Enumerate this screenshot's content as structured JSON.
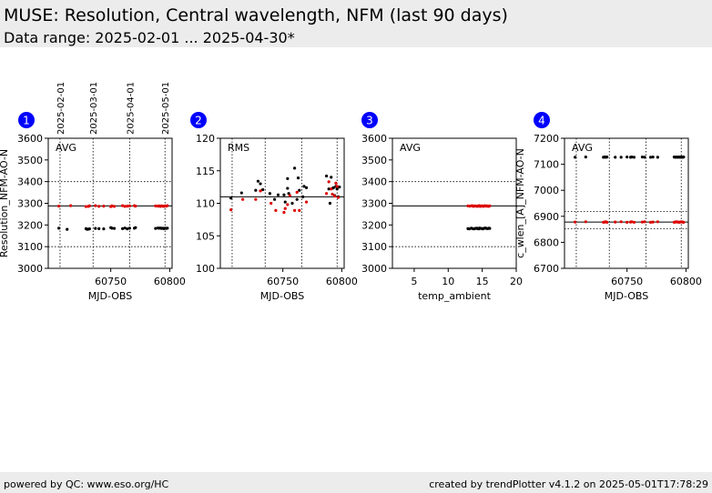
{
  "page": {
    "title": "MUSE: Resolution, Central wavelength, NFM (last 90 days)",
    "subtitle": "Data range: 2025-02-01 ... 2025-04-30*"
  },
  "footer": {
    "left": "powered by QC: www.eso.org/HC",
    "right": "created by trendPlotter v4.1.2 on 2025-05-01T17:78:29"
  },
  "colors": {
    "header_bg": "#ececec",
    "badge": "#0000ff",
    "points_black": "#000000",
    "points_red": "#dd0000"
  },
  "date_ticks": [
    {
      "label": "2025-02-01",
      "mjd": 60707
    },
    {
      "label": "2025-03-01",
      "mjd": 60735
    },
    {
      "label": "2025-04-01",
      "mjd": 60766
    },
    {
      "label": "2025-05-01",
      "mjd": 60796
    }
  ],
  "chart_data": [
    {
      "badge": "1",
      "type": "scatter",
      "corner_label": "AVG",
      "xlabel": "MJD-OBS",
      "ylabel": "Resolution_NFM-AO-N",
      "xlim": [
        60697,
        60802
      ],
      "ylim": [
        3000,
        3600
      ],
      "xticks": [
        60750,
        60800
      ],
      "yticks": [
        3000,
        3100,
        3200,
        3300,
        3400,
        3500,
        3600
      ],
      "hlines": [
        {
          "y": 3100,
          "style": "dotted"
        },
        {
          "y": 3288,
          "style": "solid"
        },
        {
          "y": 3400,
          "style": "dotted"
        }
      ],
      "vlines_mjd": [
        60707,
        60735,
        60766,
        60796
      ],
      "series": [
        {
          "color": "black",
          "points": [
            [
              60706,
              3185
            ],
            [
              60713,
              3180
            ],
            [
              60729,
              3183
            ],
            [
              60730,
              3180
            ],
            [
              60731,
              3181
            ],
            [
              60732,
              3182
            ],
            [
              60737,
              3184
            ],
            [
              60740,
              3183
            ],
            [
              60744,
              3182
            ],
            [
              60750,
              3188
            ],
            [
              60751,
              3185
            ],
            [
              60753,
              3184
            ],
            [
              60760,
              3183
            ],
            [
              60762,
              3186
            ],
            [
              60764,
              3182
            ],
            [
              60766,
              3185
            ],
            [
              60770,
              3185
            ],
            [
              60771,
              3188
            ],
            [
              60788,
              3184
            ],
            [
              60790,
              3186
            ],
            [
              60791,
              3185
            ],
            [
              60792,
              3186
            ],
            [
              60793,
              3184
            ],
            [
              60794,
              3185
            ],
            [
              60795,
              3183
            ],
            [
              60796,
              3185
            ],
            [
              60797,
              3184
            ],
            [
              60798,
              3185
            ]
          ]
        },
        {
          "color": "red",
          "points": [
            [
              60706,
              3287
            ],
            [
              60716,
              3289
            ],
            [
              60729,
              3285
            ],
            [
              60731,
              3286
            ],
            [
              60732,
              3288
            ],
            [
              60737,
              3289
            ],
            [
              60740,
              3286
            ],
            [
              60744,
              3287
            ],
            [
              60750,
              3285
            ],
            [
              60751,
              3288
            ],
            [
              60753,
              3286
            ],
            [
              60760,
              3289
            ],
            [
              60762,
              3286
            ],
            [
              60764,
              3287
            ],
            [
              60766,
              3288
            ],
            [
              60770,
              3289
            ],
            [
              60771,
              3287
            ],
            [
              60788,
              3288
            ],
            [
              60790,
              3287
            ],
            [
              60791,
              3288
            ],
            [
              60792,
              3286
            ],
            [
              60793,
              3288
            ],
            [
              60794,
              3287
            ],
            [
              60795,
              3286
            ],
            [
              60796,
              3288
            ],
            [
              60797,
              3287
            ],
            [
              60798,
              3289
            ]
          ]
        }
      ]
    },
    {
      "badge": "2",
      "type": "scatter",
      "corner_label": "RMS",
      "xlabel": "MJD-OBS",
      "ylabel": "",
      "xlim": [
        60697,
        60802
      ],
      "ylim": [
        100,
        120
      ],
      "xticks": [
        60750,
        60800
      ],
      "yticks": [
        100,
        105,
        110,
        115,
        120
      ],
      "hlines": [
        {
          "y": 111,
          "style": "solid"
        }
      ],
      "vlines_mjd": [
        60707,
        60735,
        60766,
        60796
      ],
      "series": [
        {
          "color": "black",
          "points": [
            [
              60706,
              110.8
            ],
            [
              60715,
              111.6
            ],
            [
              60727,
              112.0
            ],
            [
              60729,
              113.4
            ],
            [
              60731,
              113.0
            ],
            [
              60733,
              112.1
            ],
            [
              60739,
              111.5
            ],
            [
              60743,
              110.6
            ],
            [
              60746,
              111.3
            ],
            [
              60751,
              111.3
            ],
            [
              60752,
              110.2
            ],
            [
              60754,
              112.3
            ],
            [
              60755,
              111.5
            ],
            [
              60754,
              113.8
            ],
            [
              60758,
              110.0
            ],
            [
              60760,
              115.4
            ],
            [
              60762,
              110.6
            ],
            [
              60763,
              113.9
            ],
            [
              60764,
              112.0
            ],
            [
              60767,
              111.0
            ],
            [
              60768,
              112.6
            ],
            [
              60770,
              112.4
            ],
            [
              60787,
              114.2
            ],
            [
              60789,
              112.2
            ],
            [
              60790,
              110.0
            ],
            [
              60791,
              114.0
            ],
            [
              60792,
              112.3
            ],
            [
              60793,
              112.4
            ],
            [
              60794,
              111.2
            ],
            [
              60795,
              112.6
            ],
            [
              60796,
              112.2
            ],
            [
              60797,
              111.0
            ],
            [
              60798,
              112.5
            ]
          ]
        },
        {
          "color": "red",
          "points": [
            [
              60706,
              109.0
            ],
            [
              60716,
              110.6
            ],
            [
              60727,
              110.6
            ],
            [
              60731,
              111.9
            ],
            [
              60740,
              110.0
            ],
            [
              60744,
              108.9
            ],
            [
              60751,
              108.6
            ],
            [
              60752,
              109.2
            ],
            [
              60754,
              109.8
            ],
            [
              60756,
              111.2
            ],
            [
              60760,
              108.9
            ],
            [
              60762,
              111.7
            ],
            [
              60764,
              108.9
            ],
            [
              60770,
              110.2
            ],
            [
              60787,
              111.5
            ],
            [
              60789,
              113.3
            ],
            [
              60791,
              112.2
            ],
            [
              60792,
              111.4
            ],
            [
              60794,
              111.1
            ],
            [
              60795,
              113.1
            ],
            [
              60796,
              112.6
            ],
            [
              60797,
              110.9
            ]
          ]
        }
      ]
    },
    {
      "badge": "3",
      "type": "scatter",
      "corner_label": "AVG",
      "xlabel": "temp_ambient",
      "ylabel": "",
      "xlim": [
        1.8,
        20
      ],
      "ylim": [
        3000,
        3600
      ],
      "xticks": [
        5,
        10,
        15,
        20
      ],
      "yticks": [
        3000,
        3100,
        3200,
        3300,
        3400,
        3500,
        3600
      ],
      "hlines": [
        {
          "y": 3100,
          "style": "dotted"
        },
        {
          "y": 3288,
          "style": "solid"
        },
        {
          "y": 3400,
          "style": "dotted"
        }
      ],
      "vlines_mjd": [],
      "series": [
        {
          "color": "black",
          "points": [
            [
              12.9,
              3183
            ],
            [
              13.1,
              3182
            ],
            [
              13.4,
              3185
            ],
            [
              13.6,
              3183
            ],
            [
              13.8,
              3182
            ],
            [
              14.0,
              3184
            ],
            [
              14.2,
              3185
            ],
            [
              14.3,
              3183
            ],
            [
              14.5,
              3182
            ],
            [
              14.6,
              3186
            ],
            [
              14.8,
              3184
            ],
            [
              15.0,
              3183
            ],
            [
              15.1,
              3182
            ],
            [
              15.3,
              3185
            ],
            [
              15.5,
              3186
            ],
            [
              15.6,
              3184
            ],
            [
              15.8,
              3183
            ],
            [
              16.0,
              3185
            ],
            [
              16.1,
              3184
            ]
          ]
        },
        {
          "color": "red",
          "points": [
            [
              12.9,
              3288
            ],
            [
              13.2,
              3287
            ],
            [
              13.5,
              3289
            ],
            [
              13.7,
              3286
            ],
            [
              13.9,
              3288
            ],
            [
              14.1,
              3287
            ],
            [
              14.3,
              3286
            ],
            [
              14.4,
              3288
            ],
            [
              14.6,
              3289
            ],
            [
              14.7,
              3286
            ],
            [
              14.9,
              3287
            ],
            [
              15.0,
              3288
            ],
            [
              15.2,
              3286
            ],
            [
              15.4,
              3289
            ],
            [
              15.6,
              3287
            ],
            [
              15.7,
              3288
            ],
            [
              15.9,
              3286
            ],
            [
              16.1,
              3288
            ]
          ]
        }
      ]
    },
    {
      "badge": "4",
      "type": "scatter",
      "corner_label": "AVG",
      "xlabel": "MJD-OBS",
      "ylabel": "c_wlen_[A]_NFM-AO-N",
      "xlim": [
        60697,
        60802
      ],
      "ylim": [
        6700,
        7200
      ],
      "xticks": [
        60750,
        60800
      ],
      "yticks": [
        6700,
        6800,
        6900,
        7000,
        7100,
        7200
      ],
      "hlines": [
        {
          "y": 6852,
          "style": "dotted"
        },
        {
          "y": 6878,
          "style": "solid"
        },
        {
          "y": 6918,
          "style": "dotted"
        }
      ],
      "vlines_mjd": [
        60707,
        60735,
        60766,
        60796
      ],
      "series": [
        {
          "color": "black",
          "points": [
            [
              60706,
              7127
            ],
            [
              60715,
              7128
            ],
            [
              60730,
              7127
            ],
            [
              60731,
              7128
            ],
            [
              60732,
              7127
            ],
            [
              60733,
              7128
            ],
            [
              60740,
              7127
            ],
            [
              60745,
              7127
            ],
            [
              60750,
              7128
            ],
            [
              60753,
              7127
            ],
            [
              60754,
              7128
            ],
            [
              60756,
              7127
            ],
            [
              60763,
              7128
            ],
            [
              60765,
              7127
            ],
            [
              60770,
              7127
            ],
            [
              60772,
              7128
            ],
            [
              60776,
              7127
            ],
            [
              60790,
              7128
            ],
            [
              60791,
              7127
            ],
            [
              60792,
              7128
            ],
            [
              60793,
              7127
            ],
            [
              60794,
              7128
            ],
            [
              60795,
              7127
            ],
            [
              60796,
              7128
            ],
            [
              60797,
              7127
            ],
            [
              60798,
              7128
            ]
          ]
        },
        {
          "color": "red",
          "points": [
            [
              60706,
              6878
            ],
            [
              60715,
              6879
            ],
            [
              60730,
              6877
            ],
            [
              60731,
              6878
            ],
            [
              60732,
              6879
            ],
            [
              60733,
              6877
            ],
            [
              60740,
              6878
            ],
            [
              60745,
              6879
            ],
            [
              60750,
              6877
            ],
            [
              60753,
              6878
            ],
            [
              60754,
              6879
            ],
            [
              60756,
              6877
            ],
            [
              60763,
              6878
            ],
            [
              60765,
              6879
            ],
            [
              60770,
              6877
            ],
            [
              60772,
              6878
            ],
            [
              60776,
              6879
            ],
            [
              60790,
              6877
            ],
            [
              60791,
              6878
            ],
            [
              60792,
              6879
            ],
            [
              60793,
              6878
            ],
            [
              60794,
              6877
            ],
            [
              60795,
              6878
            ],
            [
              60796,
              6879
            ],
            [
              60797,
              6878
            ],
            [
              60798,
              6877
            ]
          ]
        }
      ]
    }
  ]
}
